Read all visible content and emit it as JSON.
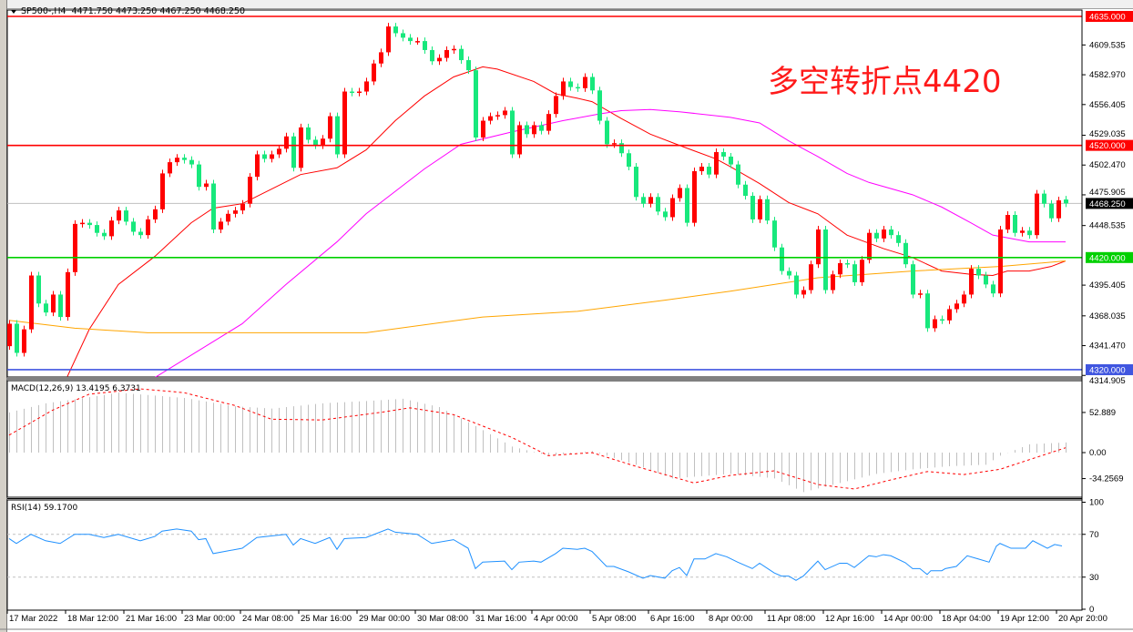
{
  "header": {
    "symbol": "SP500-,H4",
    "open": "4471.750",
    "high": "4473.250",
    "low": "4467.250",
    "close": "4468.250"
  },
  "annotation": "多空转折点4420",
  "macd_label": "MACD(12,26,9) 13.4195 6.3731",
  "rsi_label": "RSI(14) 59.1700",
  "colors": {
    "up_candle": "#ff0000",
    "down_candle": "#17e87c",
    "ma_fast": "#ff0000",
    "ma_mid": "#ff00ff",
    "ma_slow": "#ffa500",
    "level_resistance": "#ff0000",
    "level_pivot": "#00d000",
    "level_support": "#4056e0",
    "rsi_line": "#1e90ff",
    "macd_hist": "#c0c0c0",
    "macd_signal": "#ff0000"
  },
  "chart_data": {
    "type": "candlestick",
    "title": "SP500-,H4",
    "price_axis_ticks": [
      "4609.535",
      "4582.970",
      "4556.405",
      "4529.035",
      "4502.470",
      "4475.905",
      "4448.535",
      "4395.405",
      "4368.035",
      "4341.470",
      "4314.905"
    ],
    "ylim": [
      4313.5,
      4640.7
    ],
    "time_axis_labels": [
      "17 Mar 2022",
      "18 Mar 12:00",
      "21 Mar 16:00",
      "23 Mar 00:00",
      "24 Mar 08:00",
      "25 Mar 16:00",
      "29 Mar 00:00",
      "30 Mar 08:00",
      "31 Mar 16:00",
      "4 Apr 00:00",
      "5 Apr 08:00",
      "6 Apr 16:00",
      "8 Apr 00:00",
      "11 Apr 08:00",
      "12 Apr 16:00",
      "14 Apr 00:00",
      "18 Apr 04:00",
      "19 Apr 12:00",
      "20 Apr 20:00"
    ],
    "last_bar": {
      "open": 4471.75,
      "high": 4473.25,
      "low": 4467.25,
      "close": 4468.25
    },
    "closes": [
      4361,
      4335,
      4356,
      4404,
      4379,
      4371,
      4387,
      4367,
      4407,
      4450,
      4451,
      4449,
      4442,
      4439,
      4453,
      4462,
      4452,
      4443,
      4440,
      4454,
      4463,
      4495,
      4505,
      4509,
      4507,
      4503,
      4483,
      4486,
      4445,
      4452,
      4459,
      4462,
      4468,
      4492,
      4512,
      4508,
      4512,
      4517,
      4528,
      4500,
      4536,
      4525,
      4520,
      4526,
      4546,
      4512,
      4568,
      4567,
      4568,
      4577,
      4593,
      4603,
      4626,
      4620,
      4616,
      4613,
      4613,
      4605,
      4595,
      4598,
      4605,
      4606,
      4596,
      4587,
      4527,
      4542,
      4546,
      4547,
      4551,
      4512,
      4538,
      4530,
      4538,
      4533,
      4548,
      4564,
      4577,
      4572,
      4571,
      4581,
      4569,
      4542,
      4521,
      4522,
      4513,
      4501,
      4474,
      4468,
      4474,
      4461,
      4456,
      4473,
      4482,
      4451,
      4497,
      4501,
      4494,
      4514,
      4510,
      4503,
      4485,
      4475,
      4454,
      4472,
      4453,
      4429,
      4408,
      4404,
      4387,
      4391,
      4414,
      4445,
      4391,
      4405,
      4415,
      4414,
      4398,
      4418,
      4442,
      4437,
      4445,
      4440,
      4433,
      4414,
      4387,
      4388,
      4357,
      4365,
      4364,
      4374,
      4379,
      4387,
      4410,
      4404,
      4396,
      4388,
      4445,
      4458,
      4442,
      4444,
      4440,
      4477,
      4468,
      4455,
      4471,
      4468.25
    ],
    "levels": [
      {
        "label": "4635.000",
        "value": 4635,
        "color": "#ff0000"
      },
      {
        "label": "4520.000",
        "value": 4520,
        "color": "#ff0000"
      },
      {
        "label": "4420.000",
        "value": 4420,
        "color": "#00d000"
      },
      {
        "label": "4320.000",
        "value": 4320,
        "color": "#4056e0"
      }
    ],
    "current_price": {
      "label": "4468.250",
      "value": 4468.25
    },
    "moving_averages": [
      {
        "color": "#ff0000",
        "points": [
          [
            8,
            4314
          ],
          [
            11,
            4356
          ],
          [
            15,
            4396
          ],
          [
            20,
            4421
          ],
          [
            25,
            4451
          ],
          [
            28,
            4464
          ],
          [
            32,
            4468
          ],
          [
            36,
            4481
          ],
          [
            40,
            4494
          ],
          [
            45,
            4500
          ],
          [
            49,
            4516
          ],
          [
            53,
            4542
          ],
          [
            57,
            4564
          ],
          [
            61,
            4581
          ],
          [
            65,
            4590
          ],
          [
            67,
            4588
          ],
          [
            72,
            4577
          ],
          [
            75,
            4566
          ],
          [
            78,
            4562
          ],
          [
            80,
            4559
          ],
          [
            84,
            4544
          ],
          [
            88,
            4530
          ],
          [
            92,
            4520
          ],
          [
            97,
            4508
          ],
          [
            99,
            4501
          ],
          [
            103,
            4486
          ],
          [
            107,
            4469
          ],
          [
            111,
            4459
          ],
          [
            115,
            4440
          ],
          [
            120,
            4428
          ],
          [
            124,
            4420
          ],
          [
            128,
            4408
          ],
          [
            132,
            4405
          ],
          [
            135,
            4404
          ],
          [
            137,
            4408
          ],
          [
            140,
            4408
          ],
          [
            143,
            4412
          ],
          [
            145,
            4417
          ]
        ]
      },
      {
        "color": "#ff00ff",
        "points": [
          [
            20,
            4313
          ],
          [
            28,
            4345
          ],
          [
            32,
            4361
          ],
          [
            38,
            4396
          ],
          [
            45,
            4434
          ],
          [
            49,
            4459
          ],
          [
            57,
            4499
          ],
          [
            62,
            4521
          ],
          [
            69,
            4532
          ],
          [
            76,
            4542
          ],
          [
            81,
            4548
          ],
          [
            84,
            4551
          ],
          [
            88,
            4552
          ],
          [
            92,
            4550
          ],
          [
            99,
            4545
          ],
          [
            103,
            4540
          ],
          [
            107,
            4524
          ],
          [
            111,
            4510
          ],
          [
            115,
            4495
          ],
          [
            118,
            4487
          ],
          [
            124,
            4476
          ],
          [
            128,
            4465
          ],
          [
            132,
            4451
          ],
          [
            135,
            4440
          ],
          [
            140,
            4434
          ],
          [
            145,
            4434
          ]
        ]
      },
      {
        "color": "#ffa500",
        "points": [
          [
            0,
            4364
          ],
          [
            9,
            4357
          ],
          [
            19,
            4353
          ],
          [
            49,
            4353
          ],
          [
            65,
            4367
          ],
          [
            78,
            4372
          ],
          [
            90,
            4382
          ],
          [
            99,
            4390
          ],
          [
            111,
            4402
          ],
          [
            124,
            4408
          ],
          [
            136,
            4412
          ],
          [
            145,
            4417
          ]
        ]
      }
    ],
    "macd": {
      "axis_ticks": [
        "52.889",
        "0.00",
        "-34.2569"
      ],
      "histogram": [
        [
          0,
          53
        ],
        [
          5,
          65
        ],
        [
          11,
          73
        ],
        [
          15,
          79
        ],
        [
          24,
          72
        ],
        [
          31,
          61
        ],
        [
          36,
          58
        ],
        [
          43,
          65
        ],
        [
          49,
          68
        ],
        [
          54,
          71
        ],
        [
          59,
          60
        ],
        [
          64,
          35
        ],
        [
          69,
          8
        ],
        [
          74,
          -4
        ],
        [
          80,
          2
        ],
        [
          86,
          -16
        ],
        [
          91,
          -34
        ],
        [
          99,
          -28
        ],
        [
          105,
          -34
        ],
        [
          109,
          -52
        ],
        [
          114,
          -40
        ],
        [
          119,
          -28
        ],
        [
          124,
          -22
        ],
        [
          129,
          -18
        ],
        [
          134,
          -16
        ],
        [
          136,
          -4
        ],
        [
          140,
          11
        ],
        [
          145,
          13.42
        ]
      ],
      "signal": [
        [
          0,
          23
        ],
        [
          6,
          56
        ],
        [
          11,
          77
        ],
        [
          18,
          84
        ],
        [
          24,
          79
        ],
        [
          31,
          62
        ],
        [
          36,
          44
        ],
        [
          43,
          43
        ],
        [
          51,
          53
        ],
        [
          55,
          59
        ],
        [
          61,
          50
        ],
        [
          69,
          20
        ],
        [
          74,
          -4
        ],
        [
          80,
          0
        ],
        [
          86,
          -18
        ],
        [
          94,
          -40
        ],
        [
          99,
          -30
        ],
        [
          105,
          -24
        ],
        [
          111,
          -42
        ],
        [
          116,
          -48
        ],
        [
          121,
          -36
        ],
        [
          126,
          -25
        ],
        [
          131,
          -29
        ],
        [
          136,
          -22
        ],
        [
          145,
          6.37
        ]
      ]
    },
    "rsi": {
      "axis_ticks": [
        "100",
        "70",
        "30",
        "0"
      ],
      "levels": [
        70,
        30
      ],
      "points": [
        [
          0,
          66
        ],
        [
          1,
          61.5
        ],
        [
          3,
          70
        ],
        [
          5,
          64
        ],
        [
          7,
          61.5
        ],
        [
          9,
          70
        ],
        [
          11,
          70
        ],
        [
          13,
          67
        ],
        [
          15,
          70
        ],
        [
          18,
          64
        ],
        [
          20,
          68
        ],
        [
          21,
          73
        ],
        [
          23,
          75
        ],
        [
          25,
          73
        ],
        [
          26,
          65
        ],
        [
          27,
          66
        ],
        [
          28,
          52
        ],
        [
          32,
          57
        ],
        [
          34,
          67
        ],
        [
          38,
          70
        ],
        [
          39,
          60
        ],
        [
          40,
          66
        ],
        [
          42,
          61.5
        ],
        [
          44,
          67
        ],
        [
          45,
          56
        ],
        [
          46,
          66
        ],
        [
          49,
          67
        ],
        [
          52,
          75
        ],
        [
          53,
          72
        ],
        [
          56,
          70
        ],
        [
          58,
          61.5
        ],
        [
          61,
          65
        ],
        [
          63,
          57
        ],
        [
          64,
          38
        ],
        [
          65,
          44
        ],
        [
          68,
          45
        ],
        [
          69,
          37
        ],
        [
          70,
          44
        ],
        [
          72,
          45
        ],
        [
          73,
          44
        ],
        [
          75,
          52
        ],
        [
          76,
          57
        ],
        [
          78,
          56
        ],
        [
          79,
          57
        ],
        [
          80,
          54
        ],
        [
          82,
          40
        ],
        [
          83,
          40
        ],
        [
          85,
          35
        ],
        [
          87,
          29
        ],
        [
          88,
          31.5
        ],
        [
          90,
          29
        ],
        [
          91,
          36
        ],
        [
          92,
          39
        ],
        [
          93,
          31.5
        ],
        [
          94,
          47
        ],
        [
          95.5,
          47
        ],
        [
          97,
          52
        ],
        [
          98.5,
          49
        ],
        [
          100,
          44
        ],
        [
          102,
          38
        ],
        [
          103,
          43
        ],
        [
          105,
          34
        ],
        [
          106,
          31
        ],
        [
          107,
          31
        ],
        [
          108,
          27
        ],
        [
          109,
          31
        ],
        [
          111,
          45
        ],
        [
          112,
          37
        ],
        [
          114,
          43
        ],
        [
          115,
          43
        ],
        [
          116,
          39
        ],
        [
          118,
          50
        ],
        [
          119,
          49
        ],
        [
          120,
          51
        ],
        [
          121,
          50
        ],
        [
          123,
          43.5
        ],
        [
          124,
          38
        ],
        [
          125,
          38
        ],
        [
          126,
          32.5
        ],
        [
          126.5,
          36
        ],
        [
          128,
          36
        ],
        [
          128.5,
          38
        ],
        [
          130,
          40
        ],
        [
          131.5,
          50
        ],
        [
          133,
          47
        ],
        [
          134.5,
          44
        ],
        [
          135.5,
          59
        ],
        [
          136,
          61.5
        ],
        [
          137.5,
          57
        ],
        [
          139.5,
          57
        ],
        [
          140.5,
          64
        ],
        [
          142.5,
          57
        ],
        [
          143.5,
          60.5
        ],
        [
          144.5,
          59.17
        ]
      ]
    }
  }
}
